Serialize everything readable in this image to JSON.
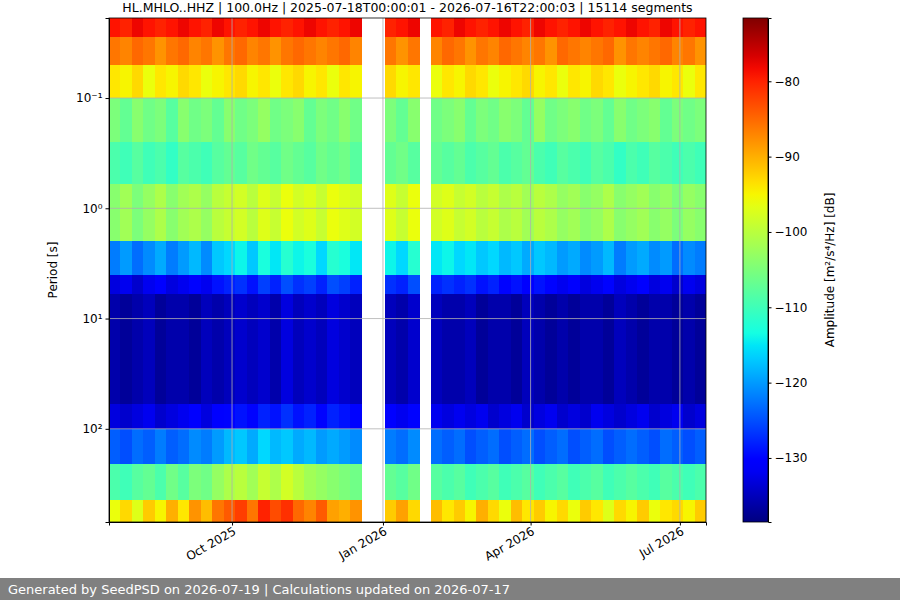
{
  "chart_data": {
    "type": "heatmap",
    "title": "HL.MHLO..HHZ | 100.0Hz | 2025-07-18T00:00:01 - 2026-07-16T22:00:03 | 15114 segments",
    "y_label": "Period [s]",
    "footer": "Generated by SeedPSD on 2026-07-19 | Calculations updated on 2026-07-17",
    "log": "y",
    "grid": true,
    "xlim": [
      "2025-07-18T00:00:01",
      "2026-07-16T22:00:03"
    ],
    "xticks": [
      {
        "value": "2025-10-01",
        "label": "Oct 2025"
      },
      {
        "value": "2026-01-01",
        "label": "Jan 2026"
      },
      {
        "value": "2026-04-01",
        "label": "Apr 2026"
      },
      {
        "value": "2026-07-01",
        "label": "Jul 2026"
      }
    ],
    "ylim": [
      700,
      0.0188
    ],
    "yticks": [
      {
        "value": 0.1,
        "label": "10⁻¹"
      },
      {
        "value": 1,
        "label": "10⁰"
      },
      {
        "value": 10,
        "label": "10¹"
      },
      {
        "value": 100,
        "label": "10²"
      }
    ],
    "x": [
      "2025-07-18",
      "2025-07-25",
      "2025-08-01",
      "2025-08-08",
      "2025-08-15",
      "2025-08-22",
      "2025-08-29",
      "2025-09-05",
      "2025-09-12",
      "2025-09-19",
      "2025-09-26",
      "2025-10-03",
      "2025-10-10",
      "2025-10-17",
      "2025-10-24",
      "2025-10-31",
      "2025-11-07",
      "2025-11-14",
      "2025-11-21",
      "2025-11-28",
      "2025-12-05",
      "2025-12-12",
      "2025-12-19",
      "2025-12-26",
      "2026-01-02",
      "2026-01-09",
      "2026-01-16",
      "2026-01-23",
      "2026-01-30",
      "2026-02-06",
      "2026-02-13",
      "2026-02-20",
      "2026-02-27",
      "2026-03-06",
      "2026-03-13",
      "2026-03-20",
      "2026-03-27",
      "2026-04-03",
      "2026-04-10",
      "2026-04-17",
      "2026-04-24",
      "2026-05-01",
      "2026-05-08",
      "2026-05-15",
      "2026-05-22",
      "2026-05-29",
      "2026-06-05",
      "2026-06-12",
      "2026-06-19",
      "2026-06-26",
      "2026-07-03",
      "2026-07-10"
    ],
    "y": [
      0.0188,
      0.028,
      0.05,
      0.1,
      0.25,
      0.6,
      2,
      4,
      6,
      60,
      100,
      210,
      440
    ],
    "cells": [
      [
        -79,
        -80,
        -78,
        -79,
        -80,
        -79,
        -78,
        -79,
        -80,
        -78,
        -79,
        -80,
        -79,
        -78,
        -79,
        -80,
        -79,
        -78,
        -79,
        -80,
        -79,
        -78,
        null,
        null,
        -80,
        -79,
        -78,
        null,
        -79,
        -80,
        -78,
        -79,
        -80,
        -79,
        -78,
        -79,
        -80,
        -78,
        -79,
        -80,
        -79,
        -78,
        -79,
        -80,
        -79,
        -78,
        -79,
        -80,
        -78,
        -79,
        -80,
        -79
      ],
      [
        -86,
        -87,
        -85,
        -86,
        -88,
        -86,
        -85,
        -87,
        -86,
        -88,
        -86,
        -85,
        -87,
        -86,
        -88,
        -86,
        -85,
        -86,
        -87,
        -86,
        -85,
        -87,
        null,
        null,
        -86,
        -88,
        -86,
        null,
        -87,
        -85,
        -86,
        -88,
        -86,
        -87,
        -85,
        -86,
        -87,
        -86,
        -88,
        -85,
        -86,
        -87,
        -86,
        -85,
        -88,
        -86,
        -87,
        -86,
        -85,
        -87,
        -86,
        -88
      ],
      [
        -94,
        -95,
        -93,
        -96,
        -94,
        -95,
        -93,
        -94,
        -96,
        -95,
        -94,
        -93,
        -95,
        -94,
        -96,
        -94,
        -93,
        -95,
        -94,
        -96,
        -94,
        -95,
        null,
        null,
        -93,
        -95,
        -94,
        null,
        -96,
        -94,
        -95,
        -93,
        -94,
        -96,
        -95,
        -94,
        -93,
        -95,
        -94,
        -96,
        -94,
        -95,
        -93,
        -94,
        -96,
        -95,
        -94,
        -93,
        -95,
        -94,
        -96,
        -94
      ],
      [
        -105,
        -107,
        -104,
        -106,
        -105,
        -108,
        -104,
        -106,
        -105,
        -107,
        -104,
        -106,
        -105,
        -103,
        -106,
        -105,
        -104,
        -107,
        -105,
        -106,
        -104,
        -106,
        null,
        null,
        -105,
        -107,
        -104,
        null,
        -106,
        -105,
        -104,
        -107,
        -105,
        -106,
        -104,
        -105,
        -107,
        -103,
        -106,
        -105,
        -104,
        -106,
        -105,
        -107,
        -104,
        -106,
        -105,
        -104,
        -107,
        -105,
        -106,
        -105
      ],
      [
        -109,
        -110,
        -108,
        -110,
        -109,
        -111,
        -108,
        -109,
        -110,
        -108,
        -107,
        -108,
        -106,
        -107,
        -108,
        -106,
        -107,
        -108,
        -106,
        -107,
        -106,
        -108,
        null,
        null,
        -107,
        -106,
        -108,
        null,
        -107,
        -108,
        -107,
        -109,
        -108,
        -107,
        -109,
        -108,
        -107,
        -109,
        -110,
        -108,
        -109,
        -110,
        -108,
        -109,
        -111,
        -109,
        -110,
        -108,
        -109,
        -110,
        -109,
        -110
      ],
      [
        -104,
        -102,
        -105,
        -103,
        -101,
        -104,
        -102,
        -101,
        -103,
        -100,
        -99,
        -98,
        -100,
        -97,
        -99,
        -96,
        -98,
        -97,
        -99,
        -96,
        -97,
        -98,
        null,
        null,
        -97,
        -99,
        -96,
        null,
        -98,
        -97,
        -99,
        -98,
        -100,
        -99,
        -101,
        -100,
        -102,
        -100,
        -101,
        -103,
        -102,
        -104,
        -103,
        -101,
        -104,
        -103,
        -102,
        -104,
        -103,
        -105,
        -103,
        -104
      ],
      [
        -122,
        -120,
        -123,
        -121,
        -119,
        -122,
        -120,
        -118,
        -121,
        -117,
        -116,
        -114,
        -117,
        -113,
        -115,
        -112,
        -114,
        -113,
        -116,
        -112,
        -113,
        -115,
        null,
        null,
        -114,
        -116,
        -112,
        null,
        -115,
        -114,
        -116,
        -115,
        -117,
        -116,
        -118,
        -117,
        -119,
        -117,
        -118,
        -120,
        -119,
        -121,
        -120,
        -118,
        -122,
        -120,
        -119,
        -121,
        -120,
        -123,
        -121,
        -122
      ],
      [
        -133,
        -132,
        -134,
        -132,
        -131,
        -133,
        -132,
        -130,
        -132,
        -129,
        -128,
        -127,
        -129,
        -126,
        -128,
        -125,
        -127,
        -126,
        -128,
        -125,
        -126,
        -128,
        null,
        null,
        -127,
        -128,
        -125,
        null,
        -128,
        -127,
        -128,
        -127,
        -129,
        -128,
        -130,
        -129,
        -131,
        -129,
        -130,
        -132,
        -131,
        -133,
        -132,
        -130,
        -133,
        -132,
        -131,
        -133,
        -132,
        -134,
        -132,
        -133
      ],
      [
        -136,
        -137,
        -136,
        -135,
        -137,
        -136,
        -136,
        -137,
        -135,
        -136,
        -135,
        -134,
        -135,
        -134,
        -136,
        -133,
        -135,
        -134,
        -135,
        -133,
        -134,
        -135,
        null,
        null,
        -135,
        -136,
        -134,
        null,
        -135,
        -136,
        -136,
        -135,
        -137,
        -136,
        -136,
        -137,
        -135,
        -136,
        -137,
        -136,
        -137,
        -136,
        -136,
        -137,
        -135,
        -136,
        -137,
        -136,
        -136,
        -137,
        -136,
        -137
      ],
      [
        -133,
        -134,
        -133,
        -132,
        -134,
        -133,
        -132,
        -131,
        -133,
        -131,
        -130,
        -129,
        -130,
        -128,
        -129,
        -127,
        -129,
        -128,
        -130,
        -128,
        -129,
        -130,
        null,
        null,
        -131,
        -132,
        -130,
        null,
        -132,
        -133,
        -132,
        -133,
        -132,
        -134,
        -133,
        -132,
        -134,
        -133,
        -132,
        -134,
        -133,
        -134,
        -132,
        -133,
        -134,
        -133,
        -132,
        -134,
        -133,
        -132,
        -134,
        -133
      ],
      [
        -124,
        -125,
        -123,
        -124,
        -122,
        -124,
        -123,
        -121,
        -122,
        -120,
        -118,
        -117,
        -119,
        -116,
        -118,
        -117,
        -119,
        -118,
        -120,
        -119,
        -120,
        -121,
        null,
        null,
        -122,
        -123,
        -121,
        null,
        -123,
        -124,
        -123,
        -125,
        -124,
        -123,
        -125,
        -124,
        -123,
        -125,
        -124,
        -123,
        -125,
        -124,
        -123,
        -125,
        -124,
        -123,
        -124,
        -125,
        -123,
        -124,
        -125,
        -124
      ],
      [
        -109,
        -110,
        -108,
        -107,
        -109,
        -106,
        -108,
        -105,
        -106,
        -103,
        -101,
        -100,
        -102,
        -99,
        -101,
        -98,
        -100,
        -102,
        -103,
        -104,
        -105,
        -106,
        null,
        null,
        -107,
        -108,
        -106,
        null,
        -108,
        -109,
        -108,
        -110,
        -109,
        -108,
        -110,
        -109,
        -108,
        -110,
        -109,
        -108,
        -110,
        -109,
        -108,
        -110,
        -109,
        -108,
        -109,
        -110,
        -108,
        -109,
        -110,
        -109
      ],
      [
        -96,
        -93,
        -97,
        -92,
        -95,
        -90,
        -94,
        -88,
        -91,
        -86,
        -84,
        -82,
        -86,
        -80,
        -83,
        -81,
        -85,
        -87,
        -84,
        -89,
        -90,
        -88,
        null,
        null,
        -92,
        -89,
        -93,
        null,
        -91,
        -94,
        -92,
        -95,
        -90,
        -93,
        -96,
        -91,
        -94,
        -92,
        -95,
        -93,
        -96,
        -92,
        -94,
        -97,
        -93,
        -95,
        -92,
        -96,
        -94,
        -93,
        -95,
        -92
      ]
    ],
    "colorbar": {
      "label": "Amplitude [m²/s⁴/Hz] [dB]",
      "range": [
        -138.5,
        -71.6
      ],
      "ticks": [
        {
          "value": -130,
          "label": "−130"
        },
        {
          "value": -120,
          "label": "−120"
        },
        {
          "value": -110,
          "label": "−110"
        },
        {
          "value": -100,
          "label": "−100"
        },
        {
          "value": -90,
          "label": "−90"
        },
        {
          "value": -80,
          "label": "−80"
        }
      ]
    }
  }
}
